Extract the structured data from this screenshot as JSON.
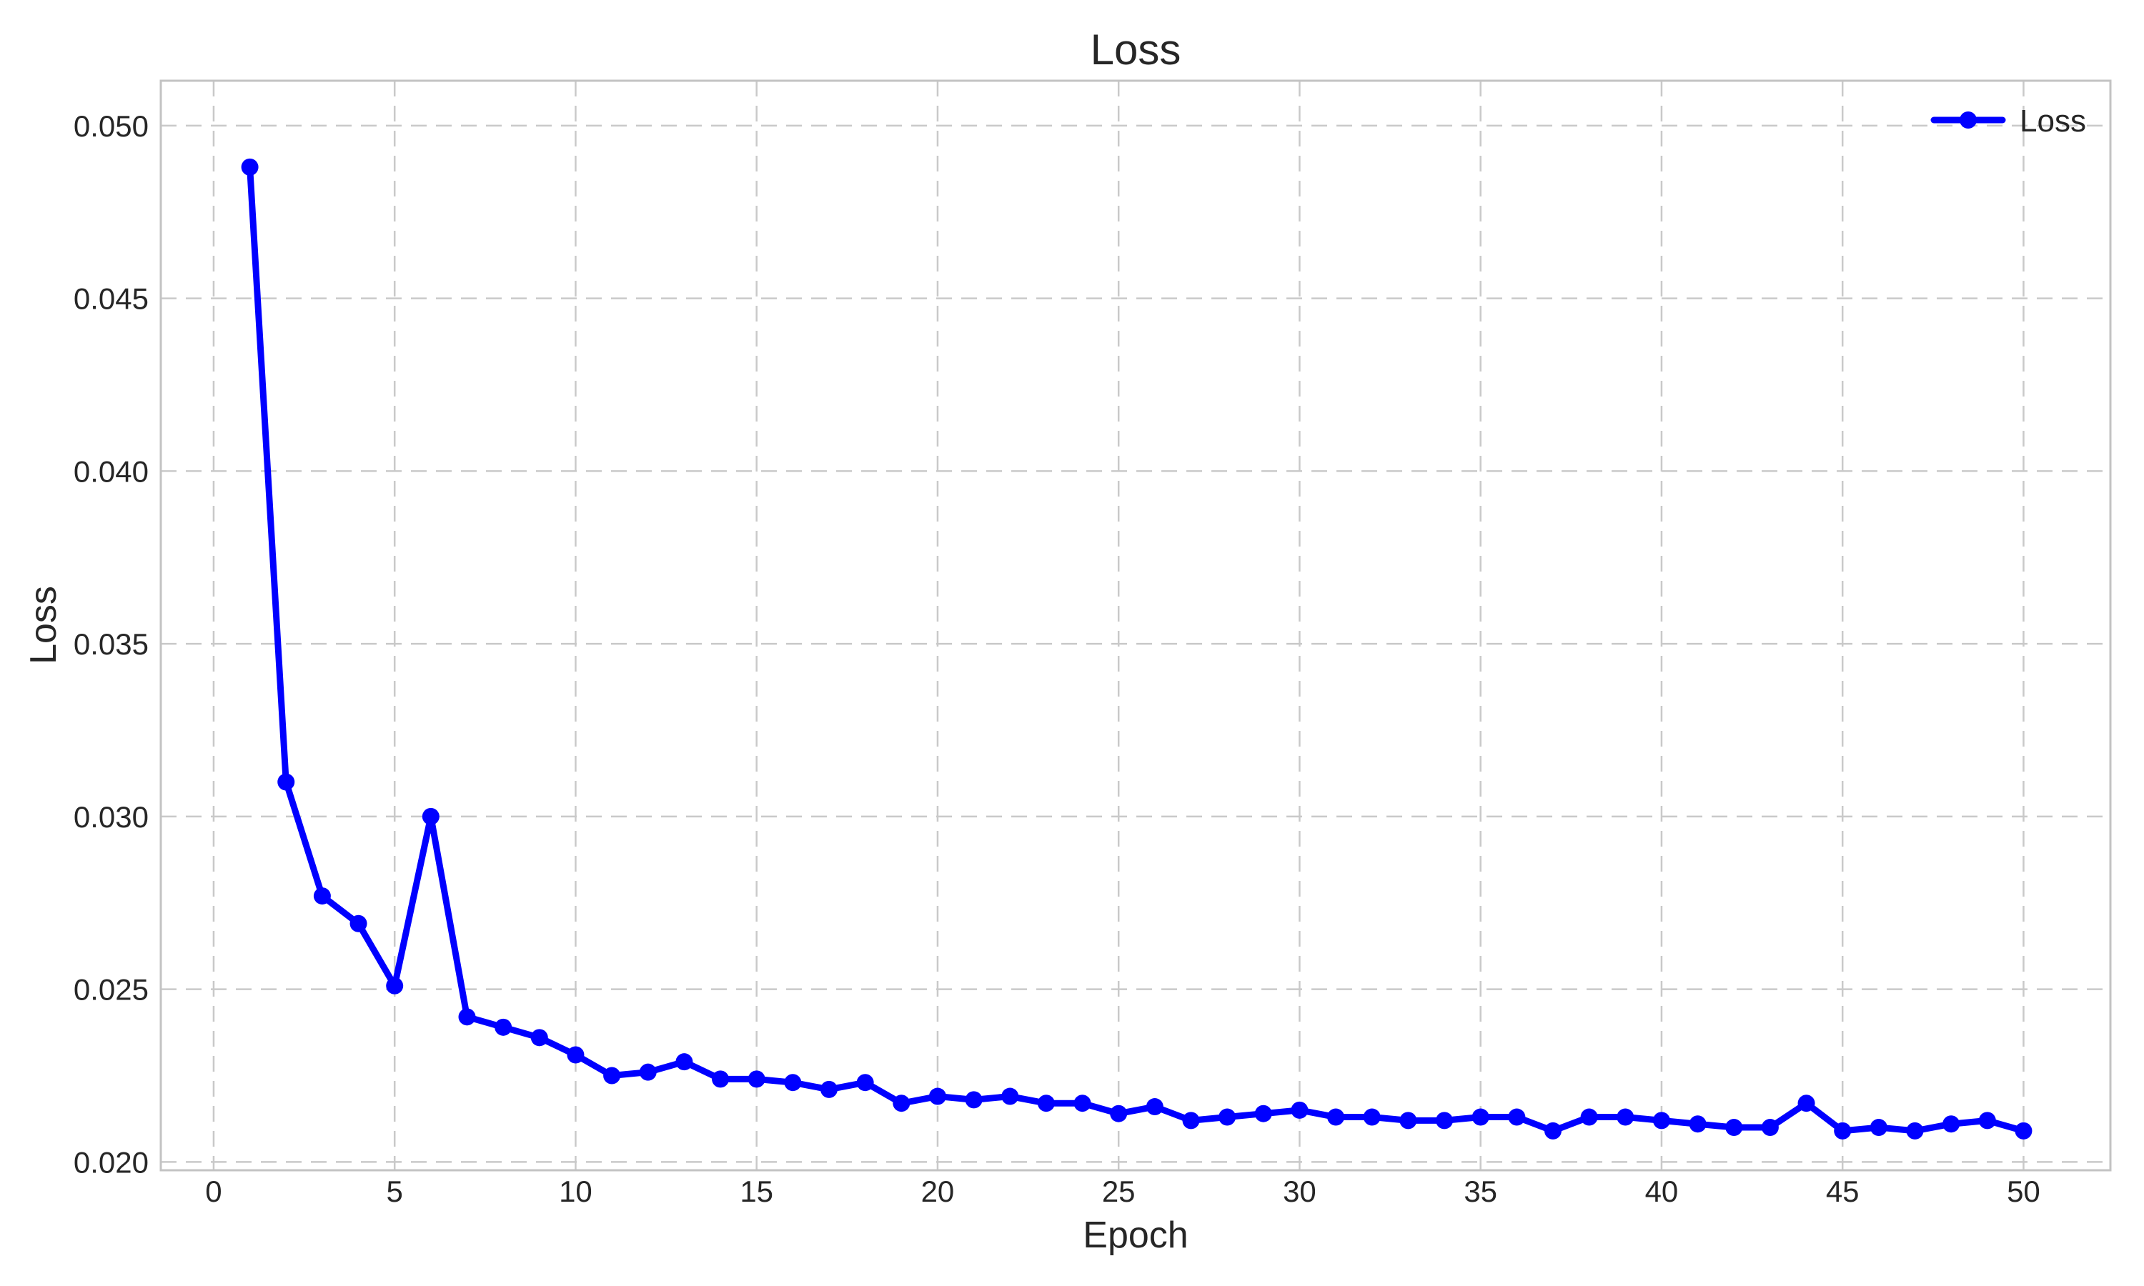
{
  "figure": {
    "background_color": "#ffffff",
    "text_color": "#262626",
    "grid_color": "#c9c9c9",
    "spine_color": "#c3c3c3"
  },
  "chart_data": {
    "type": "line",
    "title": "Loss",
    "xlabel": "Epoch",
    "ylabel": "Loss",
    "grid": true,
    "grid_style": "dashed",
    "legend_position": "upper right",
    "xlim": [
      -1.46,
      52.4
    ],
    "ylim": [
      0.01976,
      0.0513
    ],
    "xticks": [
      0,
      5,
      10,
      15,
      20,
      25,
      30,
      35,
      40,
      45,
      50
    ],
    "xtick_labels": [
      "0",
      "5",
      "10",
      "15",
      "20",
      "25",
      "30",
      "35",
      "40",
      "45",
      "50"
    ],
    "yticks": [
      0.02,
      0.025,
      0.03,
      0.035,
      0.04,
      0.045,
      0.05
    ],
    "ytick_labels": [
      "0.020",
      "0.025",
      "0.030",
      "0.035",
      "0.040",
      "0.045",
      "0.050"
    ],
    "x": [
      1,
      2,
      3,
      4,
      5,
      6,
      7,
      8,
      9,
      10,
      11,
      12,
      13,
      14,
      15,
      16,
      17,
      18,
      19,
      20,
      21,
      22,
      23,
      24,
      25,
      26,
      27,
      28,
      29,
      30,
      31,
      32,
      33,
      34,
      35,
      36,
      37,
      38,
      39,
      40,
      41,
      42,
      43,
      44,
      45,
      46,
      47,
      48,
      49,
      50
    ],
    "series": [
      {
        "name": "Loss",
        "color": "#0000FF",
        "marker": "circle",
        "values": [
          0.0488,
          0.031,
          0.0277,
          0.0269,
          0.0251,
          0.03,
          0.0242,
          0.0239,
          0.0236,
          0.0231,
          0.0225,
          0.0226,
          0.0229,
          0.0224,
          0.0224,
          0.0223,
          0.0221,
          0.0223,
          0.0217,
          0.0219,
          0.0218,
          0.0219,
          0.0217,
          0.0217,
          0.0214,
          0.0216,
          0.0212,
          0.0213,
          0.0214,
          0.0215,
          0.0213,
          0.0213,
          0.0212,
          0.0212,
          0.0213,
          0.0213,
          0.0209,
          0.0213,
          0.0213,
          0.0212,
          0.0211,
          0.021,
          0.021,
          0.0217,
          0.0209,
          0.021,
          0.0209,
          0.0211,
          0.0212,
          0.0209
        ]
      }
    ]
  }
}
